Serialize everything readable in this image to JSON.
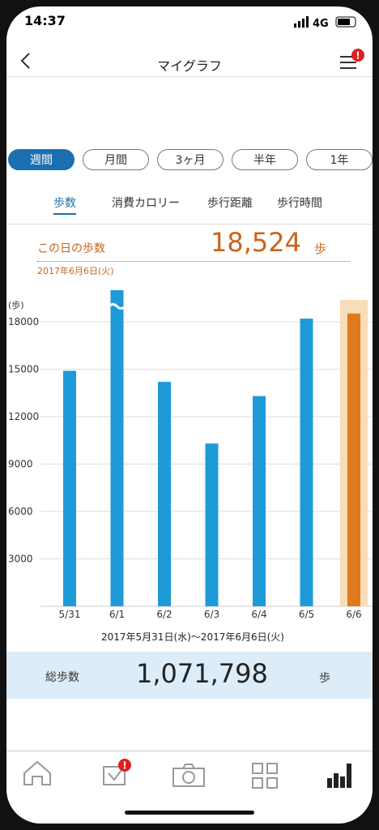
{
  "status": {
    "time": "14:37",
    "network": "4G"
  },
  "header": {
    "title": "マイグラフ",
    "badge": "!"
  },
  "period_tabs": {
    "items": [
      "週間",
      "月間",
      "3ヶ月",
      "半年",
      "1年"
    ],
    "selected": 0
  },
  "metric_tabs": {
    "items": [
      "歩数",
      "消費カロリー",
      "歩行距離",
      "歩行時間"
    ],
    "selected": 0
  },
  "day_summary": {
    "label": "この日の歩数",
    "value": "18,524",
    "unit": "歩",
    "date": "2017年6月6日(火)"
  },
  "chart_data": {
    "type": "bar",
    "y_unit_label": "(歩)",
    "categories": [
      "5/31",
      "6/1",
      "6/2",
      "6/3",
      "6/4",
      "6/5",
      "6/6"
    ],
    "values": [
      14900,
      20000,
      14200,
      10300,
      13300,
      18200,
      18524
    ],
    "color": "#1e9ad9",
    "highlight_color": "#e07a1f",
    "highlight_index": 6,
    "ylim": [
      0,
      20000
    ],
    "yticks": [
      3000,
      6000,
      9000,
      12000,
      15000,
      18000
    ],
    "grid": true,
    "date_range": "2017年5月31日(水)〜2017年6月6日(火)"
  },
  "total": {
    "label": "総歩数",
    "value": "1,071,798",
    "unit": "歩"
  },
  "nav": {
    "badge": "!",
    "selected": 4
  }
}
